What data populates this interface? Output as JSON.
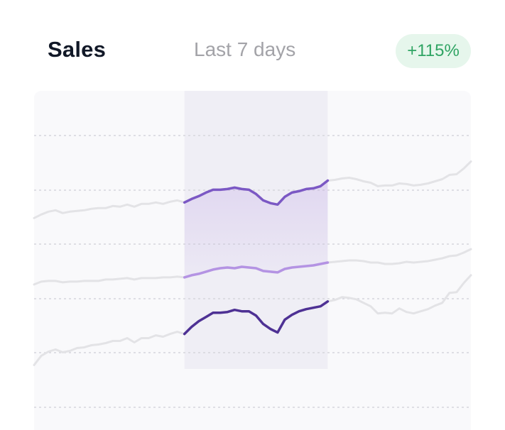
{
  "header": {
    "title": "Sales",
    "period": "Last 7 days",
    "change": "+115%"
  },
  "colors": {
    "panel": "#f9f9fb",
    "highlight": "#efeef5",
    "grid": "#d6d6dc",
    "inactive_line": "#e3e3e6",
    "accent_upper": "#7b58c4",
    "accent_middle": "#b493e3",
    "accent_lower": "#4e3194",
    "badge_bg": "#e6f6ec",
    "badge_text": "#2fa463"
  },
  "chart_data": {
    "type": "line",
    "grid": true,
    "y_gridlines": 6,
    "x": [
      0,
      1,
      2,
      3,
      4,
      5,
      6,
      7,
      8,
      9,
      10,
      11,
      12,
      13,
      14,
      15,
      16,
      17,
      18,
      19,
      20,
      21,
      22,
      23,
      24,
      25,
      26,
      27,
      28,
      29,
      30,
      31,
      32,
      33,
      34,
      35,
      36,
      37,
      38,
      39,
      40,
      41,
      42,
      43,
      44,
      45,
      46,
      47,
      48,
      49,
      50,
      51,
      52,
      53,
      54,
      55,
      56,
      57,
      58,
      59,
      60,
      61
    ],
    "highlight_range": [
      21,
      41
    ],
    "series": [
      {
        "role": "upper",
        "values": [
          300,
          305,
          309,
          311,
          307,
          309,
          310,
          311,
          313,
          314,
          314,
          317,
          316,
          319,
          316,
          320,
          320,
          322,
          320,
          323,
          325,
          322,
          327,
          331,
          336,
          340,
          340,
          341,
          343,
          341,
          340,
          334,
          325,
          321,
          319,
          330,
          336,
          338,
          341,
          342,
          345,
          353,
          354,
          356,
          357,
          355,
          352,
          350,
          345,
          346,
          346,
          349,
          348,
          346,
          347,
          349,
          352,
          355,
          361,
          362,
          370,
          380
        ]
      },
      {
        "role": "middle",
        "values": [
          206,
          210,
          211,
          211,
          209,
          210,
          210,
          211,
          211,
          211,
          213,
          213,
          214,
          215,
          213,
          215,
          215,
          215,
          216,
          216,
          217,
          216,
          219,
          221,
          224,
          227,
          229,
          230,
          229,
          231,
          230,
          229,
          225,
          224,
          223,
          228,
          230,
          231,
          232,
          233,
          235,
          237,
          238,
          239,
          240,
          240,
          239,
          237,
          237,
          235,
          235,
          236,
          238,
          237,
          238,
          239,
          241,
          243,
          246,
          247,
          251,
          256
        ]
      },
      {
        "role": "lower",
        "values": [
          92,
          105,
          111,
          114,
          110,
          112,
          116,
          117,
          120,
          121,
          123,
          126,
          126,
          130,
          124,
          130,
          130,
          134,
          132,
          136,
          139,
          136,
          146,
          154,
          160,
          166,
          166,
          167,
          170,
          168,
          168,
          162,
          150,
          143,
          138,
          156,
          163,
          168,
          171,
          173,
          175,
          182,
          184,
          188,
          187,
          185,
          180,
          175,
          165,
          166,
          165,
          172,
          167,
          165,
          168,
          171,
          176,
          180,
          194,
          195,
          208,
          219
        ]
      }
    ]
  }
}
